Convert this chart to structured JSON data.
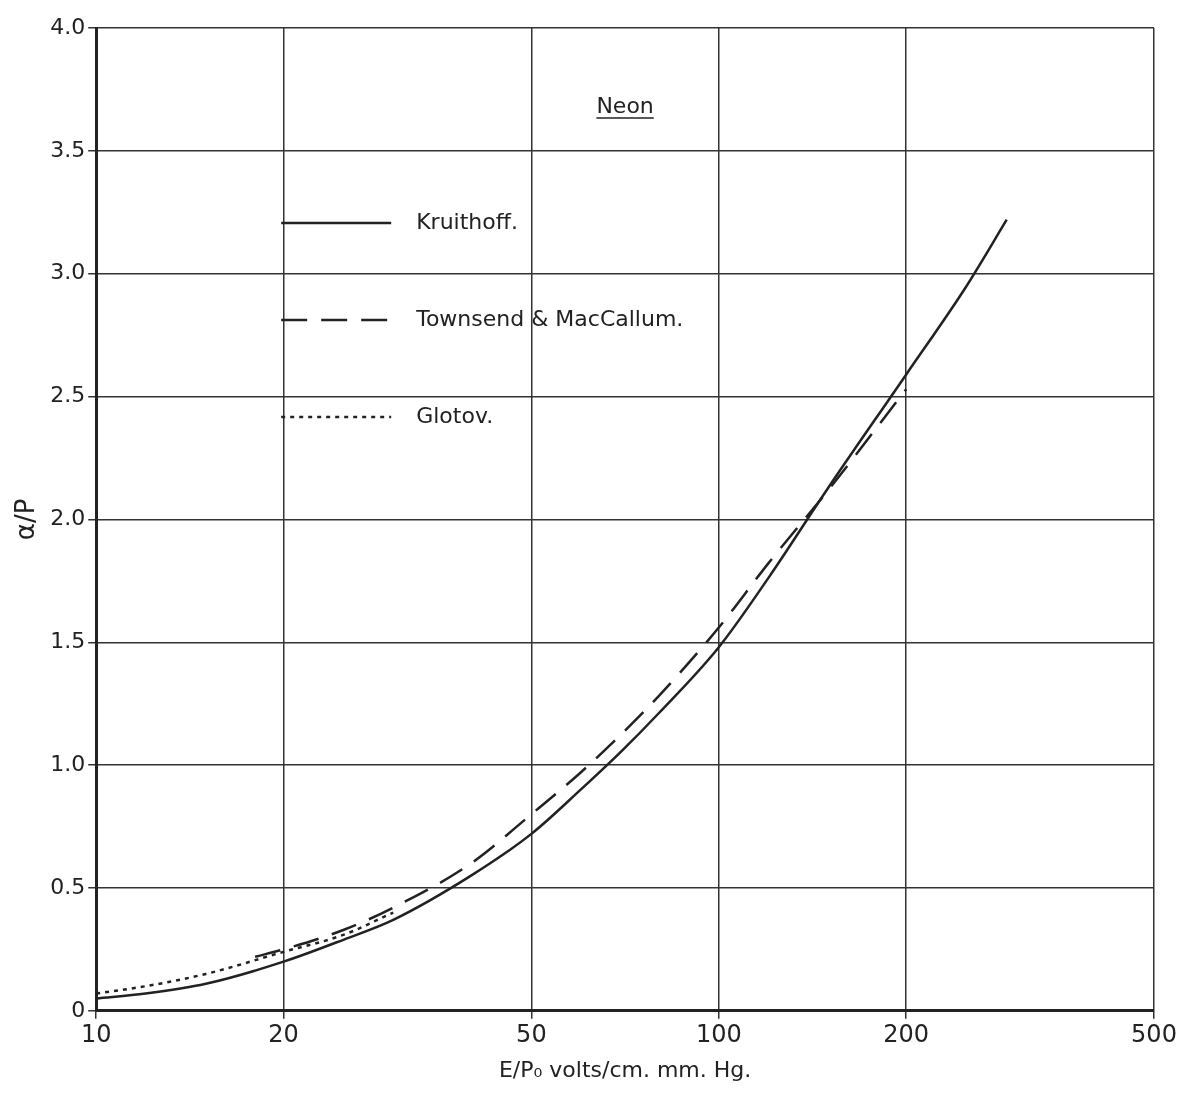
{
  "chart_data": {
    "type": "line",
    "title": "Neon",
    "xlabel": "E/P₀ volts/cm. mm. Hg.",
    "ylabel": "α/P",
    "log": "x",
    "xlim": [
      10,
      500
    ],
    "xticks": [
      10,
      20,
      50,
      100,
      200,
      500
    ],
    "ylim": [
      0,
      4.0
    ],
    "yticks": [
      0,
      0.5,
      {
        "value": 1,
        "label": "1.0"
      },
      1.5,
      {
        "value": 2,
        "label": "2.0"
      },
      2.5,
      {
        "value": 3,
        "label": "3.0"
      },
      3.5,
      {
        "value": 4,
        "label": "4.0"
      }
    ],
    "grid": true,
    "legend": "top left",
    "marker": "none",
    "series": [
      {
        "name": "Kruithoff.",
        "color": "#222222",
        "line_style": "solid",
        "x": [
          10,
          12,
          15,
          20,
          25,
          30,
          40,
          50,
          60,
          70,
          80,
          100,
          120,
          150,
          200,
          250,
          290
        ],
        "values": [
          0.05,
          0.07,
          0.11,
          0.2,
          0.29,
          0.37,
          0.55,
          0.72,
          0.9,
          1.06,
          1.21,
          1.48,
          1.76,
          2.13,
          2.59,
          2.95,
          3.22
        ]
      },
      {
        "name": "Townsend & MacCallum.",
        "color": "#222222",
        "line_style": "dashed",
        "x": [
          18,
          20,
          25,
          30,
          40,
          50,
          60,
          70,
          80,
          100,
          120,
          150,
          200
        ],
        "values": [
          0.22,
          0.25,
          0.33,
          0.42,
          0.6,
          0.8,
          0.97,
          1.13,
          1.28,
          1.56,
          1.82,
          2.12,
          2.53
        ]
      },
      {
        "name": "Glotov.",
        "color": "#222222",
        "line_style": "dotted",
        "x": [
          10,
          12,
          15,
          20,
          25,
          30
        ],
        "values": [
          0.07,
          0.1,
          0.15,
          0.24,
          0.31,
          0.4
        ]
      }
    ]
  }
}
